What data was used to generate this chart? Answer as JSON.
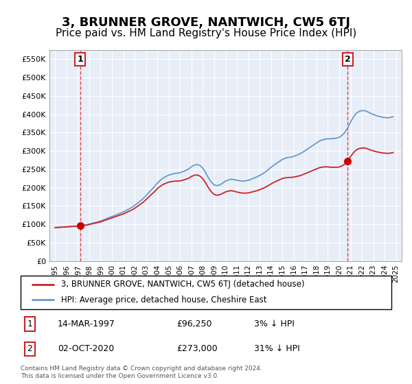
{
  "title": "3, BRUNNER GROVE, NANTWICH, CW5 6TJ",
  "subtitle": "Price paid vs. HM Land Registry's House Price Index (HPI)",
  "title_fontsize": 13,
  "subtitle_fontsize": 11,
  "background_color": "#ffffff",
  "plot_background_color": "#e8eef8",
  "grid_color": "#ffffff",
  "ylim": [
    0,
    575000
  ],
  "yticks": [
    0,
    50000,
    100000,
    150000,
    200000,
    250000,
    300000,
    350000,
    400000,
    450000,
    500000,
    550000
  ],
  "ytick_labels": [
    "£0",
    "£50K",
    "£100K",
    "£150K",
    "£200K",
    "£250K",
    "£300K",
    "£350K",
    "£400K",
    "£450K",
    "£500K",
    "£550K"
  ],
  "xlim_start": 1994.5,
  "xlim_end": 2025.5,
  "xticks": [
    1995,
    1996,
    1997,
    1998,
    1999,
    2000,
    2001,
    2002,
    2003,
    2004,
    2005,
    2006,
    2007,
    2008,
    2009,
    2010,
    2011,
    2012,
    2013,
    2014,
    2015,
    2016,
    2017,
    2018,
    2019,
    2020,
    2021,
    2022,
    2023,
    2024,
    2025
  ],
  "hpi_color": "#6699cc",
  "price_color": "#cc2222",
  "dashed_line_color": "#dd4444",
  "marker_color": "#cc0000",
  "footnote": "Contains HM Land Registry data © Crown copyright and database right 2024.\nThis data is licensed under the Open Government Licence v3.0.",
  "legend_label_price": "3, BRUNNER GROVE, NANTWICH, CW5 6TJ (detached house)",
  "legend_label_hpi": "HPI: Average price, detached house, Cheshire East",
  "sale1_date": "14-MAR-1997",
  "sale1_price": "£96,250",
  "sale1_hpi": "3% ↓ HPI",
  "sale1_year": 1997.2,
  "sale1_value": 96250,
  "sale2_date": "02-OCT-2020",
  "sale2_price": "£273,000",
  "sale2_hpi": "31% ↓ HPI",
  "sale2_year": 2020.75,
  "sale2_value": 273000,
  "hpi_years": [
    1995.0,
    1995.25,
    1995.5,
    1995.75,
    1996.0,
    1996.25,
    1996.5,
    1996.75,
    1997.0,
    1997.25,
    1997.5,
    1997.75,
    1998.0,
    1998.25,
    1998.5,
    1998.75,
    1999.0,
    1999.25,
    1999.5,
    1999.75,
    2000.0,
    2000.25,
    2000.5,
    2000.75,
    2001.0,
    2001.25,
    2001.5,
    2001.75,
    2002.0,
    2002.25,
    2002.5,
    2002.75,
    2003.0,
    2003.25,
    2003.5,
    2003.75,
    2004.0,
    2004.25,
    2004.5,
    2004.75,
    2005.0,
    2005.25,
    2005.5,
    2005.75,
    2006.0,
    2006.25,
    2006.5,
    2006.75,
    2007.0,
    2007.25,
    2007.5,
    2007.75,
    2008.0,
    2008.25,
    2008.5,
    2008.75,
    2009.0,
    2009.25,
    2009.5,
    2009.75,
    2010.0,
    2010.25,
    2010.5,
    2010.75,
    2011.0,
    2011.25,
    2011.5,
    2011.75,
    2012.0,
    2012.25,
    2012.5,
    2012.75,
    2013.0,
    2013.25,
    2013.5,
    2013.75,
    2014.0,
    2014.25,
    2014.5,
    2014.75,
    2015.0,
    2015.25,
    2015.5,
    2015.75,
    2016.0,
    2016.25,
    2016.5,
    2016.75,
    2017.0,
    2017.25,
    2017.5,
    2017.75,
    2018.0,
    2018.25,
    2018.5,
    2018.75,
    2019.0,
    2019.25,
    2019.5,
    2019.75,
    2020.0,
    2020.25,
    2020.5,
    2020.75,
    2021.0,
    2021.25,
    2021.5,
    2021.75,
    2022.0,
    2022.25,
    2022.5,
    2022.75,
    2023.0,
    2023.25,
    2023.5,
    2023.75,
    2024.0,
    2024.25,
    2024.5,
    2024.75
  ],
  "hpi_values": [
    88000,
    88500,
    89000,
    89500,
    90000,
    90500,
    91000,
    91500,
    92000,
    93000,
    94000,
    95000,
    97000,
    99000,
    101000,
    103000,
    105000,
    108000,
    111000,
    114000,
    117000,
    120000,
    123000,
    126000,
    129000,
    133000,
    137000,
    141000,
    146000,
    152000,
    158000,
    164000,
    172000,
    180000,
    188000,
    196000,
    205000,
    212000,
    218000,
    222000,
    226000,
    228000,
    230000,
    231000,
    232000,
    235000,
    238000,
    242000,
    248000,
    252000,
    254000,
    251000,
    244000,
    232000,
    218000,
    207000,
    200000,
    198000,
    200000,
    205000,
    210000,
    213000,
    215000,
    214000,
    212000,
    211000,
    210000,
    211000,
    212000,
    215000,
    218000,
    221000,
    225000,
    229000,
    234000,
    240000,
    246000,
    252000,
    257000,
    262000,
    267000,
    270000,
    272000,
    273000,
    275000,
    278000,
    281000,
    285000,
    290000,
    295000,
    300000,
    305000,
    310000,
    315000,
    318000,
    320000,
    321000,
    321000,
    322000,
    323000,
    325000,
    330000,
    338000,
    350000,
    365000,
    378000,
    388000,
    393000,
    395000,
    395000,
    392000,
    388000,
    385000,
    382000,
    380000,
    378000,
    377000,
    376000,
    377000,
    379000
  ]
}
